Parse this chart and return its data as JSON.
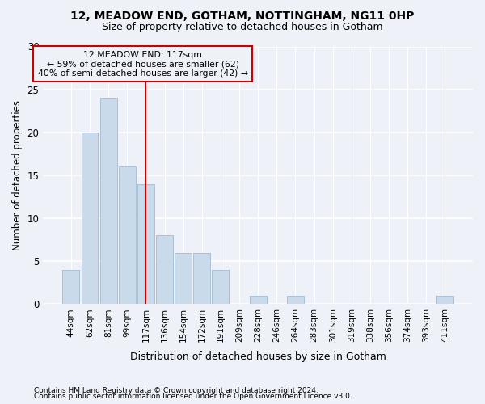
{
  "title1": "12, MEADOW END, GOTHAM, NOTTINGHAM, NG11 0HP",
  "title2": "Size of property relative to detached houses in Gotham",
  "xlabel": "Distribution of detached houses by size in Gotham",
  "ylabel": "Number of detached properties",
  "categories": [
    "44sqm",
    "62sqm",
    "81sqm",
    "99sqm",
    "117sqm",
    "136sqm",
    "154sqm",
    "172sqm",
    "191sqm",
    "209sqm",
    "228sqm",
    "246sqm",
    "264sqm",
    "283sqm",
    "301sqm",
    "319sqm",
    "338sqm",
    "356sqm",
    "374sqm",
    "393sqm",
    "411sqm"
  ],
  "values": [
    4,
    20,
    24,
    16,
    14,
    8,
    6,
    6,
    4,
    0,
    1,
    0,
    1,
    0,
    0,
    0,
    0,
    0,
    0,
    0,
    1
  ],
  "bar_color": "#c9daea",
  "bar_edge_color": "#aac0d6",
  "highlight_index": 4,
  "vline_color": "#cc0000",
  "annotation_line1": "12 MEADOW END: 117sqm",
  "annotation_line2": "← 59% of detached houses are smaller (62)",
  "annotation_line3": "40% of semi-detached houses are larger (42) →",
  "annotation_box_edgecolor": "#cc0000",
  "ylim": [
    0,
    30
  ],
  "yticks": [
    0,
    5,
    10,
    15,
    20,
    25,
    30
  ],
  "footnote1": "Contains HM Land Registry data © Crown copyright and database right 2024.",
  "footnote2": "Contains public sector information licensed under the Open Government Licence v3.0.",
  "background_color": "#eef2f8",
  "grid_color": "#ffffff"
}
